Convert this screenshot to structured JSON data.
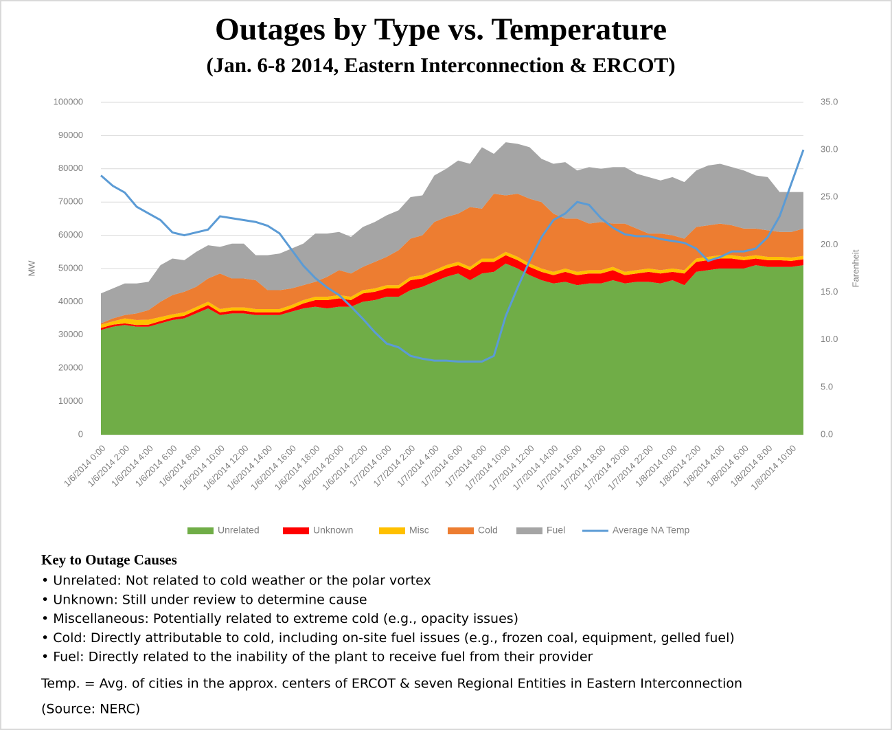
{
  "chart_data": {
    "type": "stacked_area_line",
    "title": "Outages by Type vs. Temperature",
    "subtitle": "(Jan. 6-8 2014, Eastern Interconnection & ERCOT)",
    "y_label": "MW",
    "y2_label": "Farenheit",
    "categories": [
      "1/6/2014 0:00",
      null,
      "1/6/2014 2:00",
      null,
      "1/6/2014 4:00",
      null,
      "1/6/2014 6:00",
      null,
      "1/6/2014 8:00",
      null,
      "1/6/2014 10:00",
      null,
      "1/6/2014 12:00",
      null,
      "1/6/2014 14:00",
      null,
      "1/6/2014 16:00",
      null,
      "1/6/2014 18:00",
      null,
      "1/6/2014 20:00",
      null,
      "1/6/2014 22:00",
      null,
      "1/7/2014 0:00",
      null,
      "1/7/2014 2:00",
      null,
      "1/7/2014 4:00",
      null,
      "1/7/2014 6:00",
      null,
      "1/7/2014 8:00",
      null,
      "1/7/2014 10:00",
      null,
      "1/7/2014 12:00",
      null,
      "1/7/2014 14:00",
      null,
      "1/7/2014 16:00",
      null,
      "1/7/2014 18:00",
      null,
      "1/7/2014 20:00",
      null,
      "1/7/2014 22:00",
      null,
      "1/8/2014 0:00",
      null,
      "1/8/2014 2:00",
      null,
      "1/8/2014 4:00",
      null,
      "1/8/2014 6:00",
      null,
      "1/8/2014 8:00",
      null,
      "1/8/2014 10:00",
      null
    ],
    "series": [
      {
        "name": "Unrelated",
        "color": "#70ad47",
        "values": [
          31500,
          32500,
          33000,
          32500,
          32500,
          33500,
          34500,
          35000,
          36500,
          38000,
          36000,
          36500,
          36500,
          36000,
          36000,
          36000,
          37000,
          38000,
          38500,
          38000,
          38500,
          38500,
          40000,
          40500,
          41500,
          41500,
          43500,
          44500,
          46000,
          47500,
          48500,
          46500,
          48500,
          49000,
          51500,
          50000,
          48000,
          46500,
          45500,
          46000,
          45000,
          45500,
          45500,
          46500,
          45500,
          46000,
          46000,
          45500,
          46500,
          45000,
          49000,
          49500,
          50000,
          50000,
          50000,
          51000,
          50500,
          50500,
          50500,
          51000
        ]
      },
      {
        "name": "Unknown",
        "color": "#ff0000",
        "values": [
          600,
          600,
          500,
          500,
          600,
          700,
          700,
          800,
          900,
          1000,
          800,
          800,
          800,
          800,
          800,
          800,
          1000,
          1500,
          2000,
          2500,
          2500,
          2000,
          2500,
          2500,
          2500,
          2500,
          3000,
          2500,
          2500,
          2500,
          2500,
          3000,
          3500,
          3000,
          2500,
          2500,
          2500,
          2500,
          2500,
          3000,
          3000,
          3000,
          3000,
          3000,
          2500,
          2500,
          3000,
          3000,
          2500,
          3500,
          3000,
          3000,
          3000,
          3000,
          2500,
          2000,
          2000,
          2000,
          1800,
          1800
        ]
      },
      {
        "name": "Misc",
        "color": "#ffc000",
        "values": [
          1000,
          1000,
          1500,
          1500,
          1500,
          1200,
          1000,
          1000,
          1000,
          1000,
          1000,
          1000,
          1000,
          1000,
          1000,
          1000,
          1000,
          1000,
          1000,
          1000,
          1000,
          1000,
          1000,
          1000,
          1000,
          1000,
          1000,
          1000,
          1000,
          1000,
          1000,
          1000,
          1000,
          1000,
          1000,
          1000,
          1000,
          1000,
          1000,
          1000,
          1000,
          1000,
          1000,
          1000,
          1000,
          1000,
          1000,
          1000,
          1000,
          1000,
          1000,
          1000,
          1000,
          1000,
          1000,
          1000,
          1000,
          1000,
          1000,
          1000
        ]
      },
      {
        "name": "Cold",
        "color": "#ed7d31",
        "values": [
          400,
          900,
          1000,
          2000,
          2900,
          4600,
          5800,
          6200,
          6100,
          7000,
          10700,
          8700,
          8700,
          8700,
          5700,
          5700,
          5000,
          4500,
          4500,
          6000,
          7500,
          7000,
          7000,
          8000,
          8500,
          10500,
          11500,
          12000,
          14500,
          14500,
          14500,
          18000,
          15000,
          19500,
          17000,
          19000,
          19500,
          20000,
          17500,
          15000,
          16000,
          14000,
          14500,
          13000,
          14500,
          12500,
          10500,
          11000,
          10000,
          9500,
          9500,
          9500,
          9500,
          9000,
          8500,
          8000,
          8000,
          7500,
          7700,
          8200
        ]
      },
      {
        "name": "Fuel",
        "color": "#a5a5a5",
        "values": [
          9000,
          9000,
          9500,
          9000,
          8500,
          11000,
          11000,
          9500,
          10500,
          10000,
          8000,
          10500,
          10500,
          7500,
          10500,
          11000,
          12000,
          12500,
          14500,
          13000,
          11500,
          11000,
          12000,
          12000,
          12500,
          12000,
          12500,
          12000,
          14000,
          14500,
          16000,
          13000,
          18500,
          12000,
          16000,
          15000,
          15500,
          13000,
          15000,
          17000,
          14500,
          17000,
          16000,
          17000,
          17000,
          16500,
          17000,
          16000,
          17500,
          17000,
          17000,
          18000,
          18000,
          17500,
          17500,
          16000,
          16000,
          12000,
          12000,
          11000
        ]
      },
      {
        "name": "Average NA Temp",
        "color": "#5b9bd5",
        "axis": "y2",
        "values": [
          27.3,
          26.2,
          25.5,
          24.0,
          23.3,
          22.6,
          21.3,
          21.0,
          21.3,
          21.6,
          23.0,
          22.8,
          22.6,
          22.4,
          22.0,
          21.2,
          19.5,
          17.8,
          16.5,
          15.5,
          14.7,
          13.5,
          12.2,
          10.8,
          9.6,
          9.2,
          8.3,
          8.0,
          7.8,
          7.8,
          7.7,
          7.7,
          7.7,
          8.3,
          12.5,
          15.5,
          18.3,
          20.8,
          22.6,
          23.3,
          24.5,
          24.2,
          22.8,
          21.8,
          21.1,
          20.9,
          20.9,
          20.6,
          20.4,
          20.2,
          19.6,
          18.3,
          18.7,
          19.3,
          19.3,
          19.6,
          20.8,
          23.0,
          26.5,
          30.0
        ]
      }
    ],
    "ylim": [
      0,
      100000
    ],
    "yticks": [
      0,
      10000,
      20000,
      30000,
      40000,
      50000,
      60000,
      70000,
      80000,
      90000,
      100000
    ],
    "y2lim": [
      0,
      35
    ],
    "y2ticks": [
      {
        "value": 0,
        "label": "0.0"
      },
      {
        "value": 5,
        "label": "5.0"
      },
      {
        "value": 10,
        "label": "10.0"
      },
      {
        "value": 15,
        "label": "15.0"
      },
      {
        "value": 20,
        "label": "20.0"
      },
      {
        "value": 25,
        "label": "25.0"
      },
      {
        "value": 30,
        "label": "30.0"
      },
      {
        "value": 35,
        "label": "35.0"
      }
    ],
    "grid": true,
    "legend": "bottom",
    "key_title": "Key to Outage Causes",
    "key_items": [
      "• Unrelated: Not related to cold weather or the polar vortex",
      "• Unknown: Still under review to determine cause",
      "• Miscellaneous: Potentially related to extreme cold (e.g., opacity issues)",
      "• Cold: Directly attributable to cold, including on-site fuel issues (e.g., frozen coal, equipment, gelled fuel)",
      "• Fuel: Directly related to the inability of the plant to receive fuel from their provider"
    ],
    "footnote": "Temp. = Avg. of cities in the approx. centers of ERCOT & seven Regional Entities in Eastern Interconnection",
    "source": "(Source: NERC)"
  }
}
